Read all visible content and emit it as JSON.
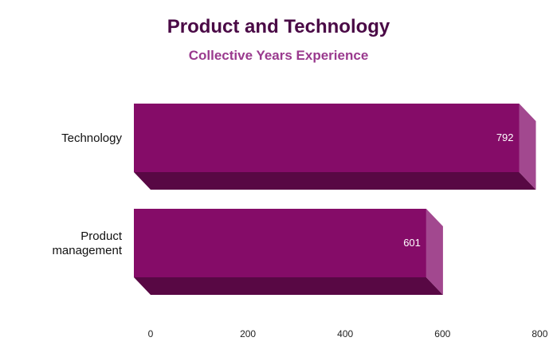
{
  "chart_data": {
    "type": "bar",
    "orientation": "horizontal",
    "title": "Product and Technology",
    "subtitle": "Collective Years Experience",
    "categories": [
      [
        "Technology"
      ],
      [
        "Product",
        "management"
      ]
    ],
    "values": [
      792,
      601
    ],
    "data_labels": [
      "792",
      "601"
    ],
    "xlim": [
      0,
      800
    ],
    "xticks": [
      0,
      200,
      400,
      600,
      800
    ],
    "tick_labels": [
      "0",
      "200",
      "400",
      "600",
      "800"
    ],
    "grid": false,
    "legend": "none",
    "colors": {
      "front": "#850c68",
      "side": "#a2488f",
      "bottom": "#580844",
      "title": "#4a0a46",
      "subtitle": "#9a3a8e"
    }
  }
}
